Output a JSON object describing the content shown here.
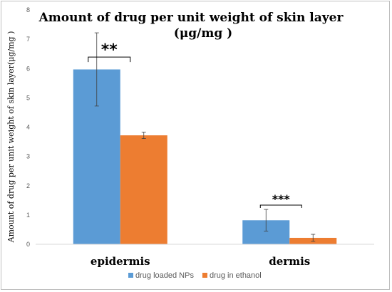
{
  "chart_data": {
    "type": "bar",
    "title_line1": "Amount of drug per unit weight of skin layer",
    "title_line2": "(μg/mg )",
    "ylabel": "Amount of drug per unit weight of skin layer(μg/mg )",
    "xlabel": "",
    "categories": [
      "epidermis",
      "dermis"
    ],
    "ylim": [
      0,
      8
    ],
    "yticks": [
      0,
      1,
      2,
      3,
      4,
      5,
      6,
      7,
      8
    ],
    "grid": false,
    "legend_position": "bottom",
    "series": [
      {
        "name": "drug loaded NPs",
        "color": "#5b9bd5",
        "values": [
          5.97,
          0.82
        ],
        "errors": [
          1.25,
          0.37
        ]
      },
      {
        "name": "drug in ethanol",
        "color": "#ed7d31",
        "values": [
          3.72,
          0.22
        ],
        "errors": [
          0.11,
          0.12
        ]
      }
    ],
    "annotations": [
      {
        "text": "**",
        "category": "epidermis"
      },
      {
        "text": "***",
        "category": "dermis"
      }
    ]
  }
}
